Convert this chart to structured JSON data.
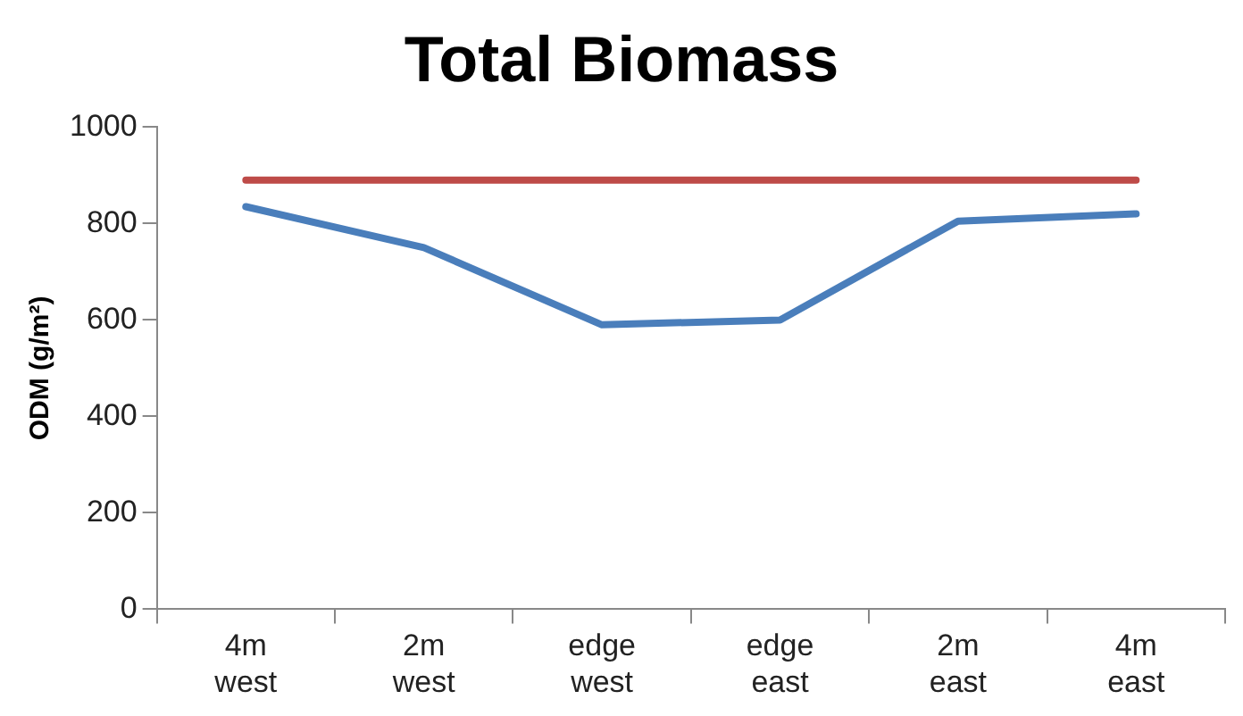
{
  "chart_data": {
    "type": "line",
    "title": "Total Biomass",
    "ylabel": "ODM (g/m²)",
    "categories": [
      "4m west",
      "2m west",
      "edge west",
      "edge east",
      "2m east",
      "4m east"
    ],
    "series": [
      {
        "color": "#be4b48",
        "values": [
          890,
          890,
          890,
          890,
          890,
          890
        ]
      },
      {
        "color": "#4a7ebb",
        "values": [
          835,
          750,
          590,
          600,
          805,
          820
        ]
      }
    ],
    "ylim": [
      0,
      1000
    ],
    "yticks": [
      0,
      200,
      400,
      600,
      800,
      1000
    ],
    "grid": false,
    "legend": false,
    "marker": "none",
    "line_style": "solid"
  }
}
